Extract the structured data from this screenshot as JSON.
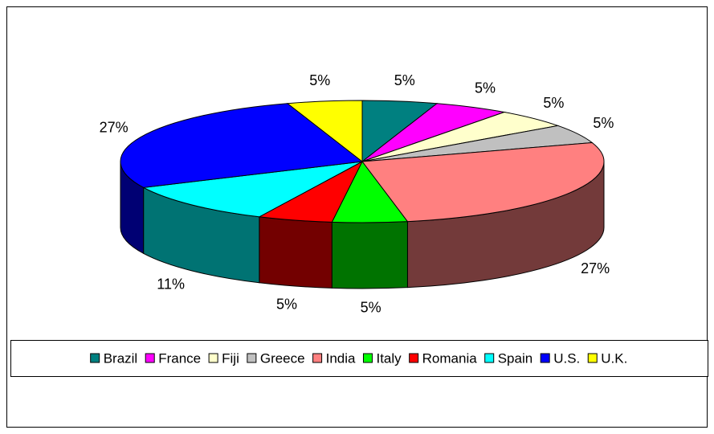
{
  "chart_data": {
    "type": "pie",
    "categories": [
      "Brazil",
      "France",
      "Fiji",
      "Greece",
      "India",
      "Italy",
      "Romania",
      "Spain",
      "U.S.",
      "U.K."
    ],
    "values": [
      5,
      5,
      5,
      5,
      27,
      5,
      5,
      11,
      27,
      5
    ],
    "value_labels": [
      "5%",
      "5%",
      "5%",
      "5%",
      "27%",
      "5%",
      "5%",
      "11%",
      "27%",
      "5%"
    ],
    "colors": [
      "#008080",
      "#ff00ff",
      "#ffffcc",
      "#c0c0c0",
      "#ff8080",
      "#00ff00",
      "#ff0000",
      "#00ffff",
      "#0000ff",
      "#ffff00"
    ],
    "legend": "bottom"
  }
}
